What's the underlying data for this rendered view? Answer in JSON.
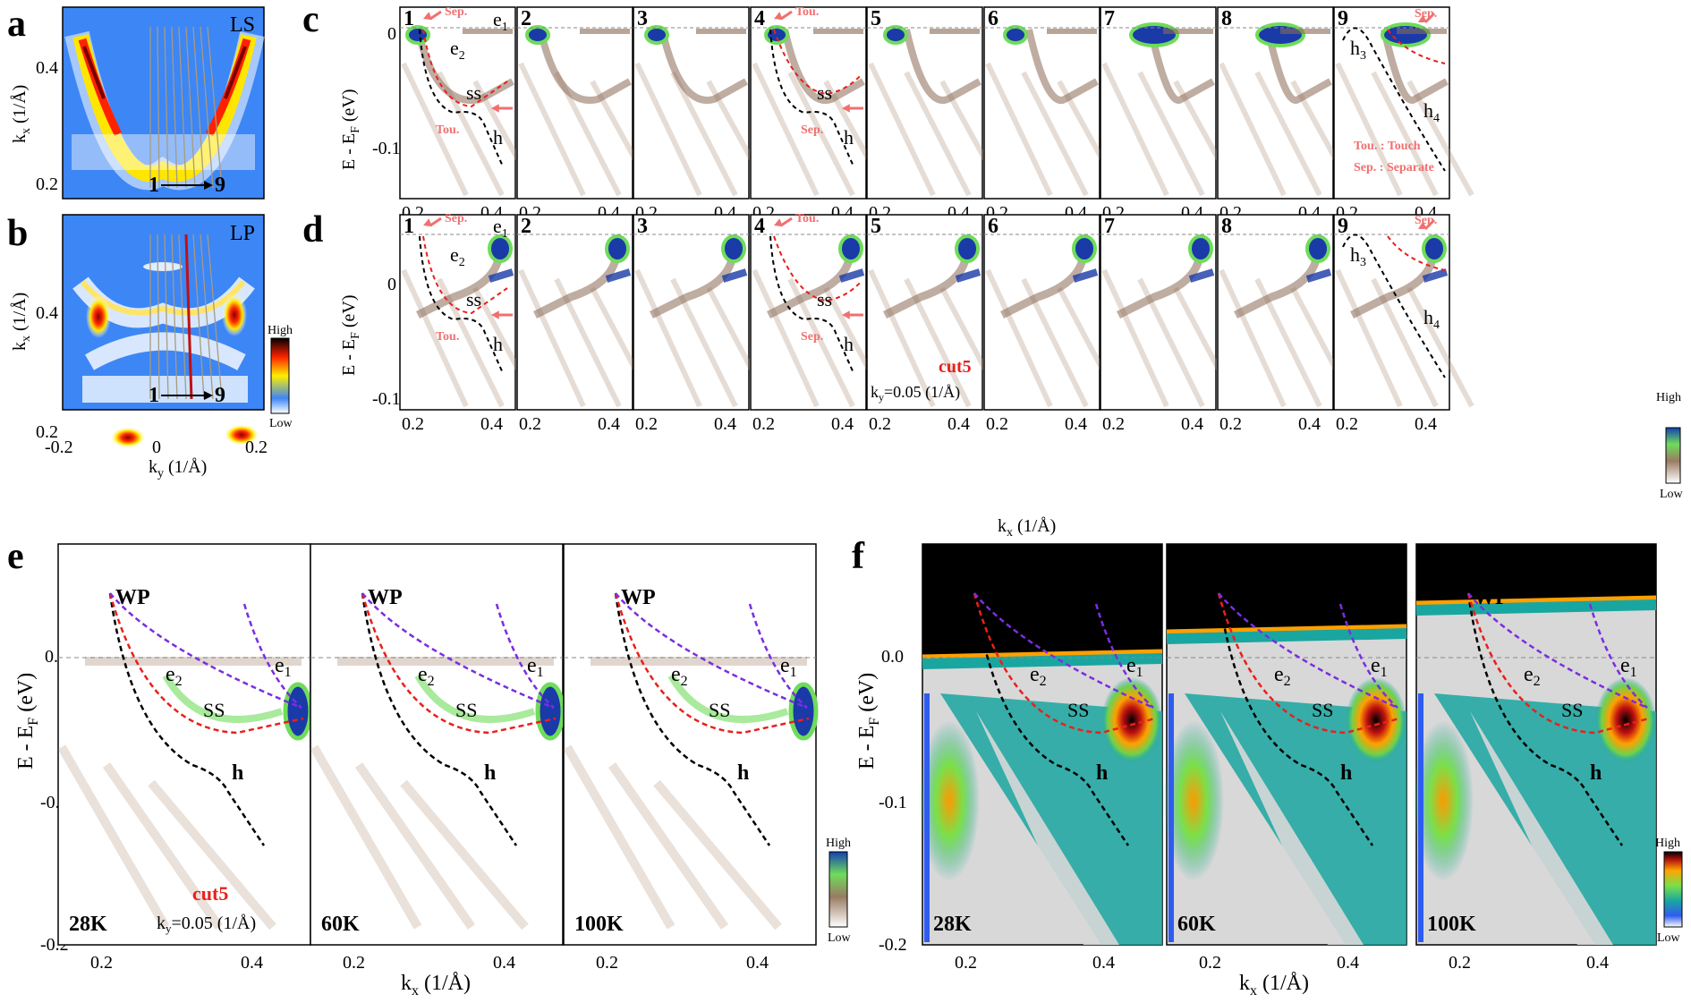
{
  "figure": {
    "panel_letters": [
      "a",
      "b",
      "c",
      "d",
      "e",
      "f"
    ],
    "panel_a": {
      "label": "LS",
      "cut_start": "1",
      "cut_end": "9"
    },
    "panel_b": {
      "label": "LP",
      "cut_start": "1",
      "cut_end": "9"
    },
    "fermi_map_axes": {
      "ylabel": "k",
      "ylabel_sub": "x",
      "ylabel_unit": " (1/Å)",
      "xlabel": "k",
      "xlabel_sub": "y",
      "xlabel_unit": " (1/Å)",
      "y_ticks": [
        "0.4",
        "0.2"
      ],
      "x_ticks": [
        "-0.2",
        "0",
        "0.2"
      ]
    },
    "colorbar_ab": {
      "high": "High",
      "low": "Low"
    },
    "cuts_axes": {
      "ylabel": "E - E",
      "ylabel_sub": "F",
      "ylabel_unit": " (eV)",
      "y_ticks": [
        "0",
        "-0.1"
      ],
      "x_ticks": [
        "0.2",
        "0.4"
      ],
      "xlabel": "k",
      "xlabel_sub": "x",
      "xlabel_unit": " (1/Å)"
    },
    "cut_numbers": [
      "1",
      "2",
      "3",
      "4",
      "5",
      "6",
      "7",
      "8",
      "9"
    ],
    "annotations": {
      "sep": "Sep.",
      "tou": "Tou.",
      "e1": "e",
      "e1_sub": "1",
      "e2": "e",
      "e2_sub": "2",
      "ss": "ss",
      "h": "h",
      "h3": "h",
      "h3_sub": "3",
      "h4": "h",
      "h4_sub": "4",
      "legend_touch": "Tou. : Touch",
      "legend_sep": "Sep. : Separate",
      "cut5": "cut5",
      "ky_value": "=0.05 (1/Å)",
      "ky": "k",
      "ky_sub": "y",
      "wp": "WP",
      "ss_upper": "SS"
    },
    "colorbar_d": {
      "high": "High",
      "low": "Low"
    },
    "temperature_axes": {
      "ylabel": "E - E",
      "ylabel_sub": "F",
      "ylabel_unit": " (eV)",
      "y_ticks": [
        "0.0",
        "-0.1",
        "-0.2"
      ],
      "x_ticks": [
        "0.2",
        "0.4"
      ],
      "xlabel": "k",
      "xlabel_sub": "x",
      "xlabel_unit": " (1/Å)"
    },
    "temperatures": [
      "28K",
      "60K",
      "100K"
    ],
    "colorbar_e": {
      "high": "High",
      "low": "Low"
    },
    "colorbar_f": {
      "high": "High",
      "low": "Low"
    },
    "colors": {
      "map_bg": "#3d86f5",
      "pink": "#f07070",
      "red_dash": "#e8201c",
      "purple_dash": "#7a2ee0",
      "black_dash": "#000000"
    }
  }
}
